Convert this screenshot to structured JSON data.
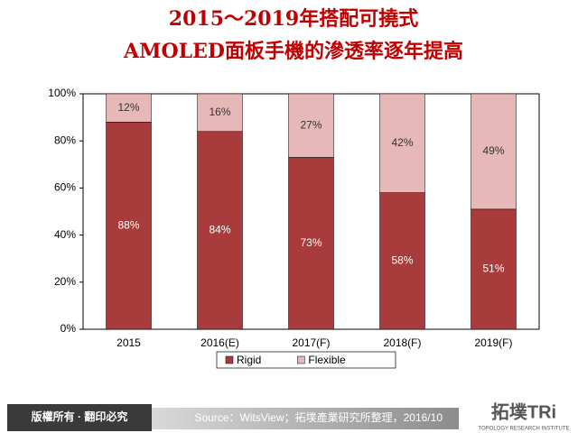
{
  "chart_data": {
    "type": "stacked_bar",
    "title_lines": [
      "2015～2019年搭配可撓式",
      "AMOLED面板手機的滲透率逐年提高"
    ],
    "categories": [
      "2015",
      "2016(E)",
      "2017(F)",
      "2018(F)",
      "2019(F)"
    ],
    "series": [
      {
        "name": "Rigid",
        "color": "#a83c3c",
        "values": [
          88,
          84,
          73,
          58,
          51
        ],
        "value_labels": [
          "88%",
          "84%",
          "73%",
          "58%",
          "51%"
        ]
      },
      {
        "name": "Flexible",
        "color": "#e6b8b8",
        "values": [
          12,
          16,
          27,
          42,
          49
        ],
        "value_labels": [
          "12%",
          "16%",
          "27%",
          "42%",
          "49%"
        ]
      }
    ],
    "ylim": [
      0,
      100
    ],
    "yticks": [
      {
        "value": 0,
        "label": "0%"
      },
      {
        "value": 20,
        "label": "20%"
      },
      {
        "value": 40,
        "label": "40%"
      },
      {
        "value": 60,
        "label": "60%"
      },
      {
        "value": 80,
        "label": "80%"
      },
      {
        "value": 100,
        "label": "100%"
      }
    ],
    "legend": "bottom"
  },
  "footer": {
    "copyright": "版權所有 · 翻印必究",
    "source": "Source：WitsView；拓墣產業研究所整理，2016/10",
    "logo": "拓墣TRi",
    "logo_subtitle": "TOPOLOGY RESEARCH INSTITUTE"
  }
}
